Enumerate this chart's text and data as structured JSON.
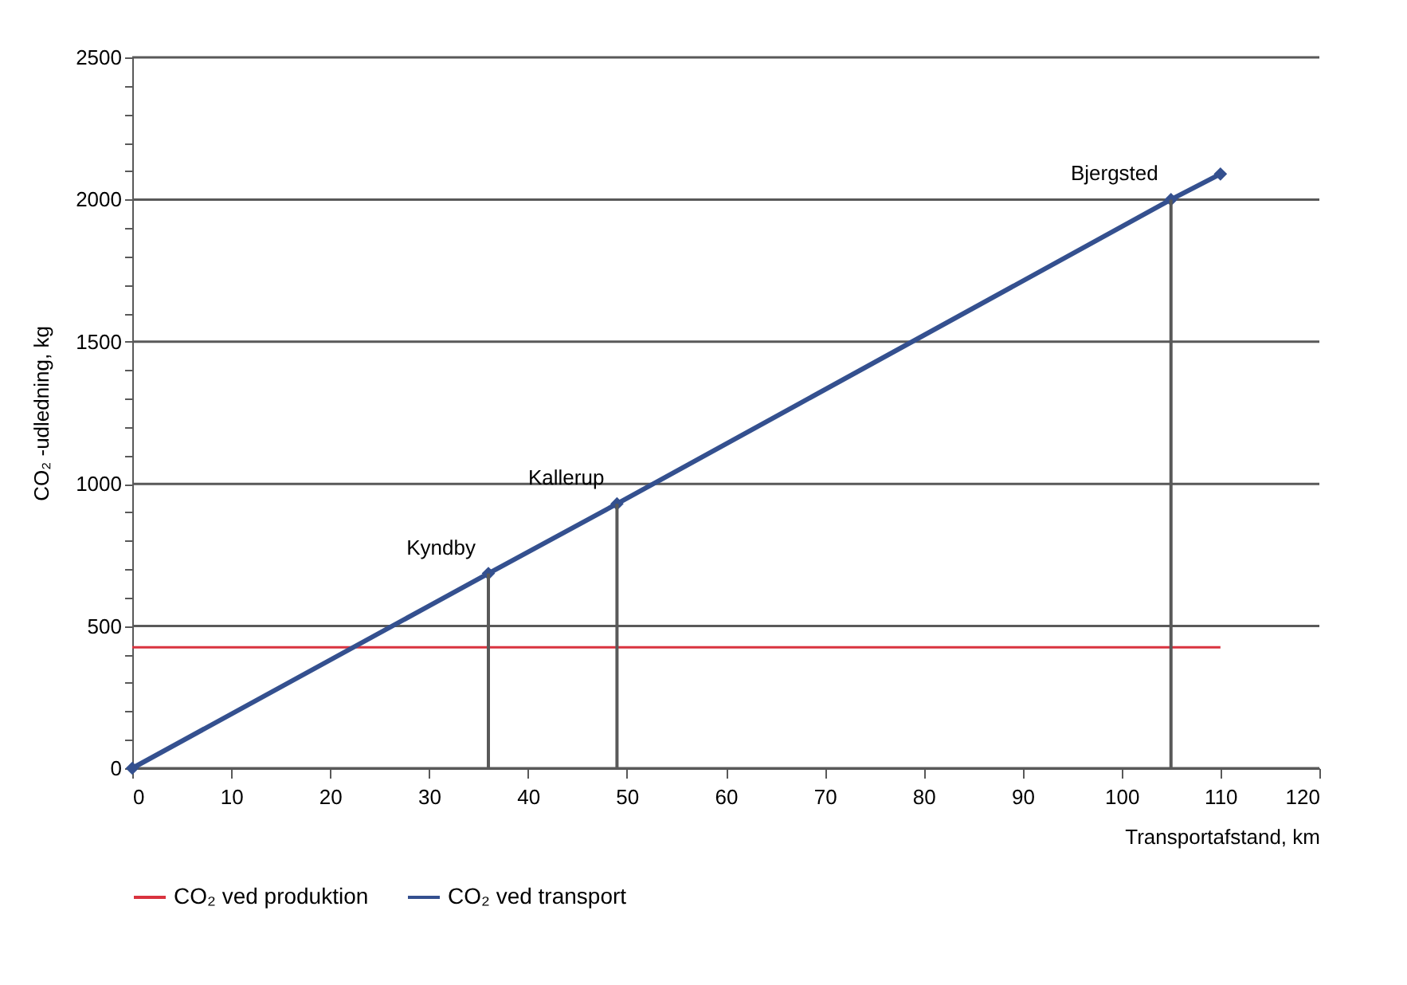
{
  "chart_data": {
    "type": "line",
    "xlabel": "Transportafstand, km",
    "ylabel": "CO₂ -udledning, kg",
    "xlim": [
      0,
      120
    ],
    "xticks": [
      0,
      10,
      20,
      30,
      40,
      50,
      60,
      70,
      80,
      90,
      100,
      110,
      120
    ],
    "ylim": [
      0,
      2500
    ],
    "yticks": [
      0,
      {
        "value": 100,
        "label": null
      },
      {
        "value": 200,
        "label": null
      },
      {
        "value": 300,
        "label": null
      },
      {
        "value": 400,
        "label": null
      },
      500,
      {
        "value": 600,
        "label": null
      },
      {
        "value": 700,
        "label": null
      },
      {
        "value": 800,
        "label": null
      },
      {
        "value": 900,
        "label": null
      },
      1000,
      {
        "value": 1100,
        "label": null
      },
      {
        "value": 1200,
        "label": null
      },
      {
        "value": 1300,
        "label": null
      },
      {
        "value": 1400,
        "label": null
      },
      1500,
      {
        "value": 1600,
        "label": null
      },
      {
        "value": 1700,
        "label": null
      },
      {
        "value": 1800,
        "label": null
      },
      {
        "value": 1900,
        "label": null
      },
      2000,
      {
        "value": 2100,
        "label": null
      },
      {
        "value": 2200,
        "label": null
      },
      {
        "value": 2300,
        "label": null
      },
      {
        "value": 2400,
        "label": null
      },
      2500
    ],
    "grid": "y",
    "legend": "bottom",
    "series": [
      {
        "name": "CO₂ ved produktion",
        "color": "#d9333f",
        "x": [
          0,
          110
        ],
        "values": [
          425,
          425
        ],
        "marker": "none"
      },
      {
        "name": "CO₂ ved transport",
        "color": "#34508f",
        "x": [
          0,
          36,
          49,
          105,
          110
        ],
        "values": [
          0,
          685,
          930,
          2000,
          2090
        ],
        "marker": "diamond"
      },
      {
        "color": "#595959",
        "x": [
          36,
          36
        ],
        "values": [
          0,
          685
        ],
        "marker": "none"
      },
      {
        "color": "#595959",
        "x": [
          49,
          49
        ],
        "values": [
          0,
          930
        ],
        "marker": "none"
      },
      {
        "color": "#595959",
        "x": [
          105,
          105
        ],
        "values": [
          0,
          2000
        ],
        "marker": "none"
      }
    ],
    "annotations": [
      {
        "text": "Kyndby",
        "x": 36,
        "y": 685
      },
      {
        "text": "Kallerup",
        "x": 49,
        "y": 930
      },
      {
        "text": "Bjergsted",
        "x": 105,
        "y": 2000
      }
    ]
  }
}
